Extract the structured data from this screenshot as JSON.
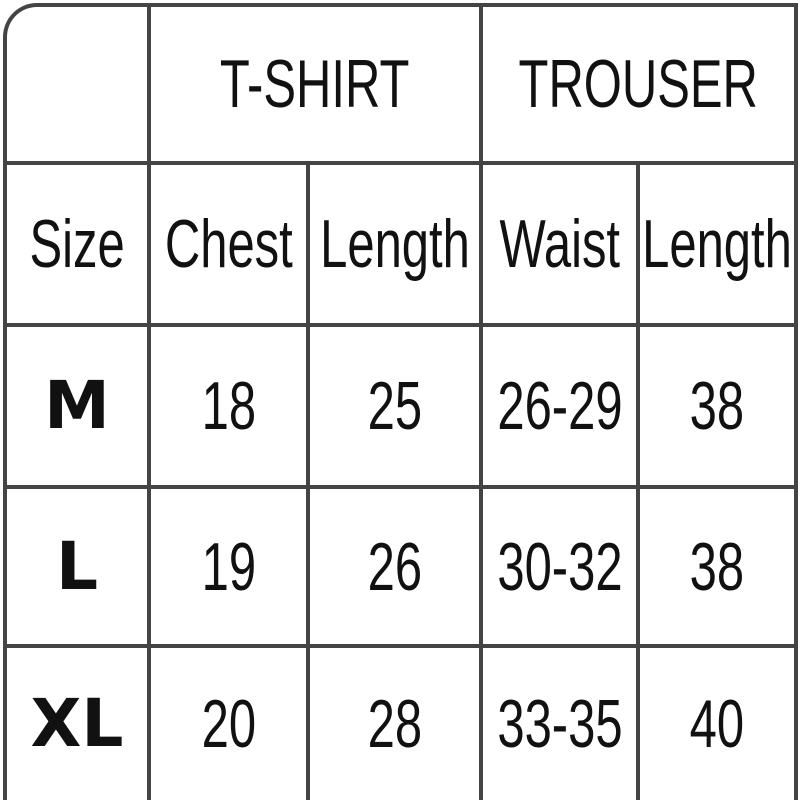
{
  "groups": [
    "T-SHIRT",
    "TROUSER"
  ],
  "columns": [
    "Size",
    "Chest",
    "Length",
    "Waist",
    "Length"
  ],
  "rows": [
    {
      "size": "M",
      "chest": "18",
      "tshirt_length": "25",
      "waist": "26-29",
      "trouser_length": "38"
    },
    {
      "size": "L",
      "chest": "19",
      "tshirt_length": "26",
      "waist": "30-32",
      "trouser_length": "38"
    },
    {
      "size": "XL",
      "chest": "20",
      "tshirt_length": "28",
      "waist": "33-35",
      "trouser_length": "40"
    }
  ]
}
